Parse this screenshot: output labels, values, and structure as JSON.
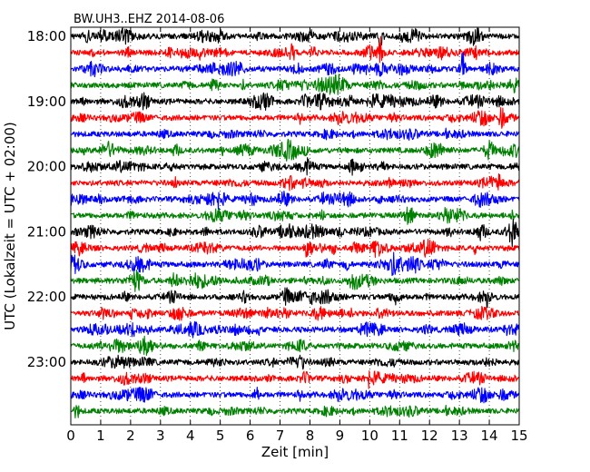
{
  "chart_data": {
    "type": "line",
    "title": "BW.UH3..EHZ 2014-08-06",
    "xlabel": "Zeit  [min]",
    "ylabel": "UTC (Lokalzeit = UTC + 02:00)",
    "xlim": [
      0,
      15
    ],
    "x_ticks": [
      "0",
      "1",
      "2",
      "3",
      "4",
      "5",
      "6",
      "7",
      "8",
      "9",
      "10",
      "11",
      "12",
      "13",
      "14",
      "15"
    ],
    "y_ticks": [
      "18:00",
      "19:00",
      "20:00",
      "21:00",
      "22:00",
      "23:00"
    ],
    "trace_interval_min": 15,
    "trace_count": 24,
    "trace_colors": [
      "#000000",
      "#ff0000",
      "#0000ff",
      "#008000"
    ],
    "grid": "vertical dotted at each minute",
    "events": [
      {
        "trace": 0,
        "x": 10.35,
        "amp": 0.85
      },
      {
        "trace": 1,
        "x": 10.35,
        "amp": 1.25
      },
      {
        "trace": 2,
        "x": 13.1,
        "amp": 1.5
      },
      {
        "trace": 4,
        "x": 9.4,
        "amp": 0.6
      },
      {
        "trace": 5,
        "x": 14.4,
        "amp": 0.5
      },
      {
        "trace": 8,
        "x": 9.4,
        "amp": 0.55
      },
      {
        "trace": 12,
        "x": 14.8,
        "amp": 0.9
      },
      {
        "trace": 13,
        "x": 7.9,
        "amp": 0.7
      },
      {
        "trace": 13,
        "x": 9.5,
        "amp": 0.6
      },
      {
        "trace": 16,
        "x": 8.0,
        "amp": 0.5
      },
      {
        "trace": 21,
        "x": 10.0,
        "amp": 0.5
      },
      {
        "trace": 22,
        "x": 6.2,
        "amp": 0.6
      },
      {
        "trace": 23,
        "x": 0.2,
        "amp": 0.55
      }
    ]
  }
}
